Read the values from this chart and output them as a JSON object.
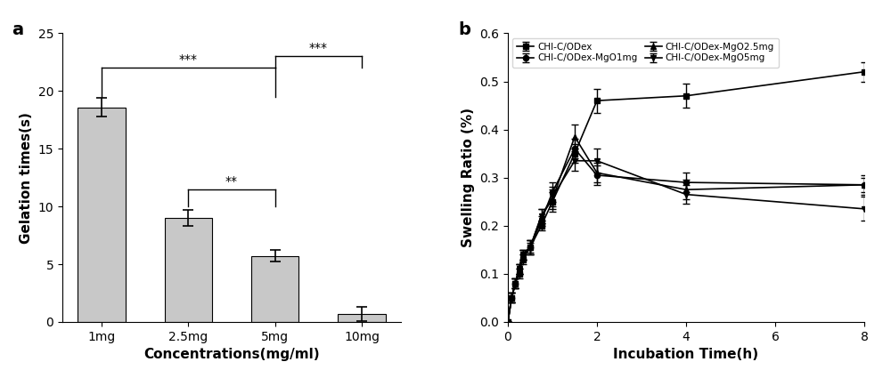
{
  "bar_categories": [
    "1mg",
    "2.5mg",
    "5mg",
    "10mg"
  ],
  "bar_values": [
    18.6,
    9.0,
    5.7,
    0.7
  ],
  "bar_errors": [
    0.8,
    0.7,
    0.5,
    0.6
  ],
  "bar_color": "#c8c8c8",
  "bar_xlabel": "Concentrations(mg/ml)",
  "bar_ylabel": "Gelation times(s)",
  "bar_ylim": [
    0,
    25
  ],
  "bar_yticks": [
    0,
    5,
    10,
    15,
    20,
    25
  ],
  "panel_a_label": "a",
  "panel_b_label": "b",
  "line_time": [
    0,
    0.083,
    0.167,
    0.25,
    0.333,
    0.5,
    0.75,
    1.0,
    1.5,
    2.0,
    4.0,
    8.0
  ],
  "CHI_C_ODex": [
    0.0,
    0.05,
    0.08,
    0.1,
    0.13,
    0.155,
    0.2,
    0.25,
    0.35,
    0.46,
    0.47,
    0.52
  ],
  "CHI_C_ODex_err": [
    0.0,
    0.01,
    0.01,
    0.01,
    0.01,
    0.01,
    0.01,
    0.02,
    0.02,
    0.025,
    0.025,
    0.02
  ],
  "CHI_C_ODex_MgO1": [
    0.0,
    0.05,
    0.08,
    0.11,
    0.14,
    0.155,
    0.21,
    0.27,
    0.36,
    0.305,
    0.29,
    0.285
  ],
  "CHI_C_ODex_MgO1_err": [
    0.0,
    0.01,
    0.01,
    0.01,
    0.01,
    0.015,
    0.01,
    0.02,
    0.02,
    0.02,
    0.02,
    0.015
  ],
  "CHI_C_ODex_MgO25": [
    0.0,
    0.05,
    0.08,
    0.11,
    0.14,
    0.155,
    0.22,
    0.255,
    0.385,
    0.31,
    0.275,
    0.285
  ],
  "CHI_C_ODex_MgO25_err": [
    0.0,
    0.01,
    0.01,
    0.01,
    0.01,
    0.015,
    0.015,
    0.02,
    0.025,
    0.02,
    0.02,
    0.02
  ],
  "CHI_C_ODex_MgO5": [
    0.0,
    0.05,
    0.08,
    0.11,
    0.14,
    0.155,
    0.22,
    0.26,
    0.335,
    0.335,
    0.265,
    0.235
  ],
  "CHI_C_ODex_MgO5_err": [
    0.0,
    0.01,
    0.01,
    0.01,
    0.01,
    0.015,
    0.015,
    0.02,
    0.02,
    0.025,
    0.02,
    0.025
  ],
  "line_xlabel": "Incubation Time(h)",
  "line_ylabel": "Swelling Ratio (%)",
  "line_ylim": [
    0.0,
    0.6
  ],
  "line_yticks": [
    0.0,
    0.1,
    0.2,
    0.3,
    0.4,
    0.5,
    0.6
  ],
  "line_xlim": [
    0,
    8
  ],
  "line_xticks": [
    0,
    2,
    4,
    6,
    8
  ],
  "legend_labels": [
    "CHI-C/ODex",
    "CHI-C/ODex-MgO1mg",
    "CHI-C/ODex-MgO2.5mg",
    "CHI-C/ODex-MgO5mg"
  ],
  "legend_markers": [
    "s",
    "o",
    "^",
    "v"
  ],
  "sig_1_3": "***",
  "sig_1_4": "***",
  "sig_2_3": "**",
  "figure_bg": "#ffffff",
  "bar_edge_color": "#000000",
  "line_color": "#000000"
}
